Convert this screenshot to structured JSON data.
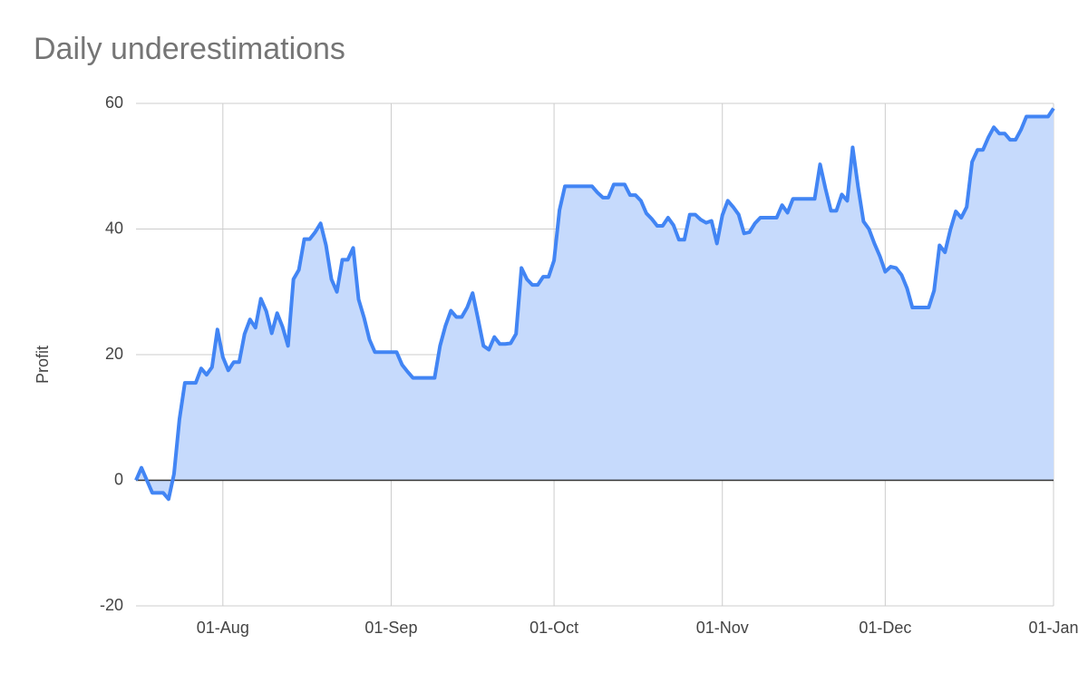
{
  "chart_data": {
    "type": "area",
    "title": "Daily underestimations",
    "y_label": "Profit",
    "color": "#4285f4",
    "area_color": "#c6dafc",
    "grid": true,
    "ylim": [
      -20,
      60
    ],
    "yticks": [
      -20,
      0,
      20,
      40,
      60
    ],
    "categories": [
      null,
      null,
      null,
      null,
      null,
      null,
      null,
      null,
      null,
      null,
      null,
      null,
      null,
      null,
      null,
      null,
      "01-Aug",
      null,
      null,
      null,
      null,
      null,
      null,
      null,
      null,
      null,
      null,
      null,
      null,
      null,
      null,
      null,
      null,
      null,
      null,
      null,
      null,
      null,
      null,
      null,
      null,
      null,
      null,
      null,
      null,
      null,
      null,
      "01-Sep",
      null,
      null,
      null,
      null,
      null,
      null,
      null,
      null,
      null,
      null,
      null,
      null,
      null,
      null,
      null,
      null,
      null,
      null,
      null,
      null,
      null,
      null,
      null,
      null,
      null,
      null,
      null,
      null,
      null,
      "01-Oct",
      null,
      null,
      null,
      null,
      null,
      null,
      null,
      null,
      null,
      null,
      null,
      null,
      null,
      null,
      null,
      null,
      null,
      null,
      null,
      null,
      null,
      null,
      null,
      null,
      null,
      null,
      null,
      null,
      null,
      null,
      "01-Nov",
      null,
      null,
      null,
      null,
      null,
      null,
      null,
      null,
      null,
      null,
      null,
      null,
      null,
      null,
      null,
      null,
      null,
      null,
      null,
      null,
      null,
      null,
      null,
      null,
      null,
      null,
      null,
      null,
      null,
      "01-Dec",
      null,
      null,
      null,
      null,
      null,
      null,
      null,
      null,
      null,
      null,
      null,
      null,
      null,
      null,
      null,
      null,
      null,
      null,
      null,
      null,
      null,
      null,
      null,
      null,
      null,
      null,
      null,
      null,
      null,
      null,
      "01-Jan"
    ],
    "values": [
      0,
      2,
      0,
      -2,
      -2,
      -2,
      -3,
      1,
      9.7,
      15.5,
      15.5,
      15.5,
      17.8,
      16.8,
      18,
      24,
      19.6,
      17.5,
      18.8,
      18.8,
      23.3,
      25.6,
      24.3,
      28.9,
      26.9,
      23.4,
      26.6,
      24.4,
      21.4,
      32,
      33.5,
      38.4,
      38.4,
      39.5,
      40.9,
      37.4,
      32,
      30,
      35.1,
      35.1,
      37,
      28.8,
      25.9,
      22.4,
      20.4,
      20.4,
      20.4,
      20.4,
      20.4,
      18.4,
      17.3,
      16.3,
      16.3,
      16.3,
      16.3,
      16.3,
      21.4,
      24.6,
      27,
      26,
      26,
      27.5,
      29.8,
      25.7,
      21.4,
      20.8,
      22.8,
      21.7,
      21.7,
      21.8,
      23.3,
      33.8,
      32,
      31.1,
      31.1,
      32.4,
      32.4,
      35,
      43,
      46.8,
      46.8,
      46.8,
      46.8,
      46.8,
      46.8,
      45.8,
      45,
      45,
      47.1,
      47.1,
      47.1,
      45.4,
      45.4,
      44.5,
      42.5,
      41.6,
      40.5,
      40.5,
      41.8,
      40.6,
      38.3,
      38.3,
      42.3,
      42.3,
      41.5,
      41,
      41.3,
      37.7,
      42.2,
      44.5,
      43.5,
      42.3,
      39.3,
      39.5,
      40.9,
      41.8,
      41.8,
      41.8,
      41.8,
      43.8,
      42.6,
      44.8,
      44.8,
      44.8,
      44.8,
      44.8,
      50.3,
      46.4,
      42.9,
      42.9,
      45.5,
      44.5,
      53,
      46.7,
      41.2,
      40,
      37.7,
      35.7,
      33.2,
      34,
      33.8,
      32.7,
      30.6,
      27.5,
      27.5,
      27.5,
      27.5,
      30.2,
      37.4,
      36.3,
      39.9,
      42.8,
      41.8,
      43.5,
      50.7,
      52.6,
      52.6,
      54.6,
      56.2,
      55.2,
      55.2,
      54.2,
      54.2,
      55.8,
      57.9,
      57.9,
      57.9,
      57.9,
      57.9,
      59.2
    ]
  }
}
